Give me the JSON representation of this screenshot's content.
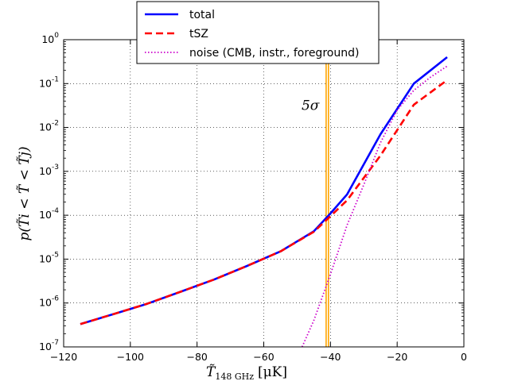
{
  "chart_data": {
    "type": "line",
    "title": "",
    "xlabel": "T̃148 GHz [μK]",
    "xlabel_parts": {
      "main": "T̃",
      "sub": "148 GHz",
      "unit": "[μK]"
    },
    "ylabel": "p(T̃i < T̃ < T̃j)",
    "xlim": [
      -120,
      0
    ],
    "ylim": [
      1e-07,
      1
    ],
    "yscale": "log",
    "grid": true,
    "legend_placement": "top-center",
    "xticks": [
      -120,
      -100,
      -80,
      -60,
      -40,
      -20,
      0
    ],
    "xtick_labels": [
      "−120",
      "−100",
      "−80",
      "−60",
      "−40",
      "−20",
      "0"
    ],
    "yticks": [
      1e-07,
      1e-06,
      1e-05,
      0.0001,
      0.001,
      0.01,
      0.1,
      1
    ],
    "ytick_labels": [
      {
        "base": "10",
        "exp": "-7"
      },
      {
        "base": "10",
        "exp": "-6"
      },
      {
        "base": "10",
        "exp": "-5"
      },
      {
        "base": "10",
        "exp": "-4"
      },
      {
        "base": "10",
        "exp": "-3"
      },
      {
        "base": "10",
        "exp": "-2"
      },
      {
        "base": "10",
        "exp": "-1"
      },
      {
        "base": "10",
        "exp": "0"
      }
    ],
    "series": [
      {
        "name": "total",
        "color": "#0000ff",
        "style": "solid",
        "x": [
          -115,
          -105,
          -95,
          -85,
          -75,
          -65,
          -55,
          -45,
          -40,
          -35,
          -25,
          -15,
          -5
        ],
        "y": [
          3.3e-07,
          5.6e-07,
          9.6e-07,
          1.8e-06,
          3.4e-06,
          7e-06,
          1.5e-05,
          4.3e-05,
          0.00011,
          0.0003,
          0.007,
          0.1,
          0.4
        ]
      },
      {
        "name": "tSZ",
        "color": "#ff0000",
        "style": "dashed",
        "x": [
          -115,
          -105,
          -95,
          -85,
          -75,
          -65,
          -55,
          -45,
          -40,
          -35,
          -25,
          -15,
          -5
        ],
        "y": [
          3.3e-07,
          5.6e-07,
          9.6e-07,
          1.8e-06,
          3.4e-06,
          7e-06,
          1.5e-05,
          4.2e-05,
          9.5e-05,
          0.00022,
          0.0023,
          0.033,
          0.12
        ]
      },
      {
        "name": "noise (CMB, instr., foreground)",
        "color": "#cc00cc",
        "style": "dotted",
        "x": [
          -48.5,
          -45,
          -40,
          -35,
          -30,
          -25,
          -20,
          -15,
          -10,
          -5
        ],
        "y": [
          1e-07,
          4e-07,
          4.5e-06,
          6e-05,
          0.0005,
          0.0045,
          0.025,
          0.07,
          0.14,
          0.25
        ]
      }
    ],
    "vlines": [
      {
        "x": -41.3,
        "color": "#ffa500"
      },
      {
        "x": -40.6,
        "color": "#ffa500"
      }
    ],
    "annotations": [
      {
        "text": "5σ",
        "x": -46,
        "y": 0.025
      }
    ]
  }
}
